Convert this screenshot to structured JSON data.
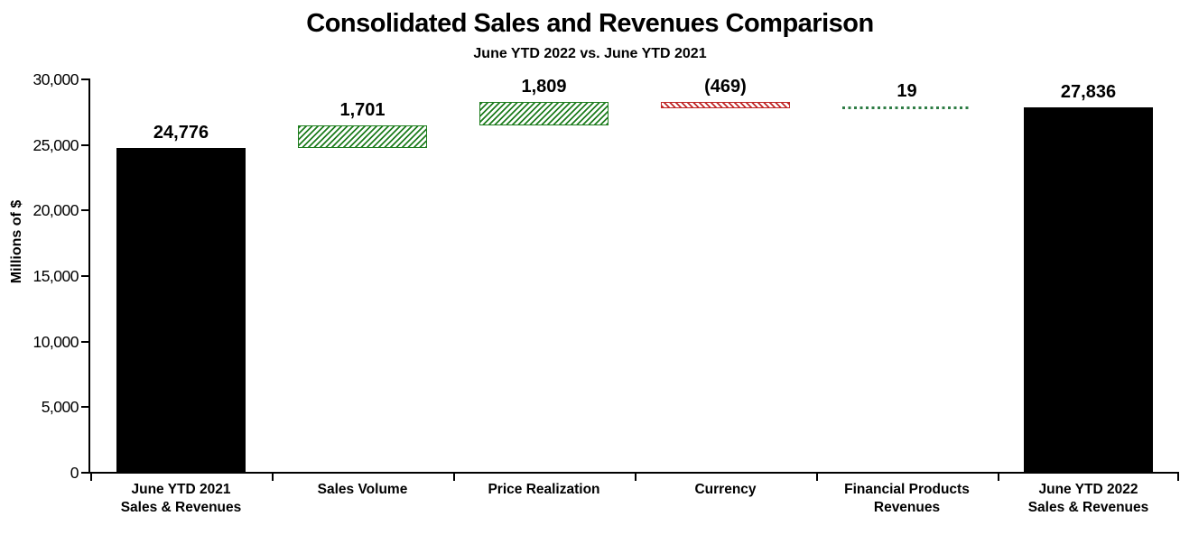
{
  "chart_data": {
    "type": "bar",
    "subtype": "waterfall",
    "title": "Consolidated Sales and Revenues Comparison",
    "subtitle": "June YTD 2022 vs. June YTD 2021",
    "ylabel": "Millions of $",
    "ylim": [
      0,
      30000
    ],
    "grid": false,
    "legend": false,
    "yticks": [
      {
        "value": 0,
        "label": "0"
      },
      {
        "value": 5000,
        "label": "5,000"
      },
      {
        "value": 10000,
        "label": "10,000"
      },
      {
        "value": 15000,
        "label": "15,000"
      },
      {
        "value": 20000,
        "label": "20,000"
      },
      {
        "value": 25000,
        "label": "25,000"
      },
      {
        "value": 30000,
        "label": "30,000"
      }
    ],
    "bars": [
      {
        "id": "june-ytd-2021-sales-revenues",
        "category_lines": [
          "June YTD 2021",
          "Sales & Revenues"
        ],
        "value": 24776,
        "display": "24,776",
        "start": 0,
        "end": 24776,
        "style": "solid"
      },
      {
        "id": "sales-volume",
        "category_lines": [
          "Sales Volume"
        ],
        "value": 1701,
        "display": "1,701",
        "start": 24776,
        "end": 26477,
        "style": "increase"
      },
      {
        "id": "price-realization",
        "category_lines": [
          "Price Realization"
        ],
        "value": 1809,
        "display": "1,809",
        "start": 26477,
        "end": 28286,
        "style": "increase"
      },
      {
        "id": "currency",
        "category_lines": [
          "Currency"
        ],
        "value": -469,
        "display": "(469)",
        "start": 27817,
        "end": 28286,
        "style": "decrease"
      },
      {
        "id": "financial-products-revenues",
        "category_lines": [
          "Financial Products",
          "Revenues"
        ],
        "value": 19,
        "display": "19",
        "start": 27817,
        "end": 27836,
        "style": "flat-dotted"
      },
      {
        "id": "june-ytd-2022-sales-revenues",
        "category_lines": [
          "June YTD 2022",
          "Sales & Revenues"
        ],
        "value": 27836,
        "display": "27,836",
        "start": 0,
        "end": 27836,
        "style": "solid"
      }
    ],
    "colors": {
      "solid_bar": "#000000",
      "increase_hatch": "#1E7D1E",
      "decrease_hatch": "#C02727",
      "flat_dotted": "#2F7D46"
    }
  }
}
